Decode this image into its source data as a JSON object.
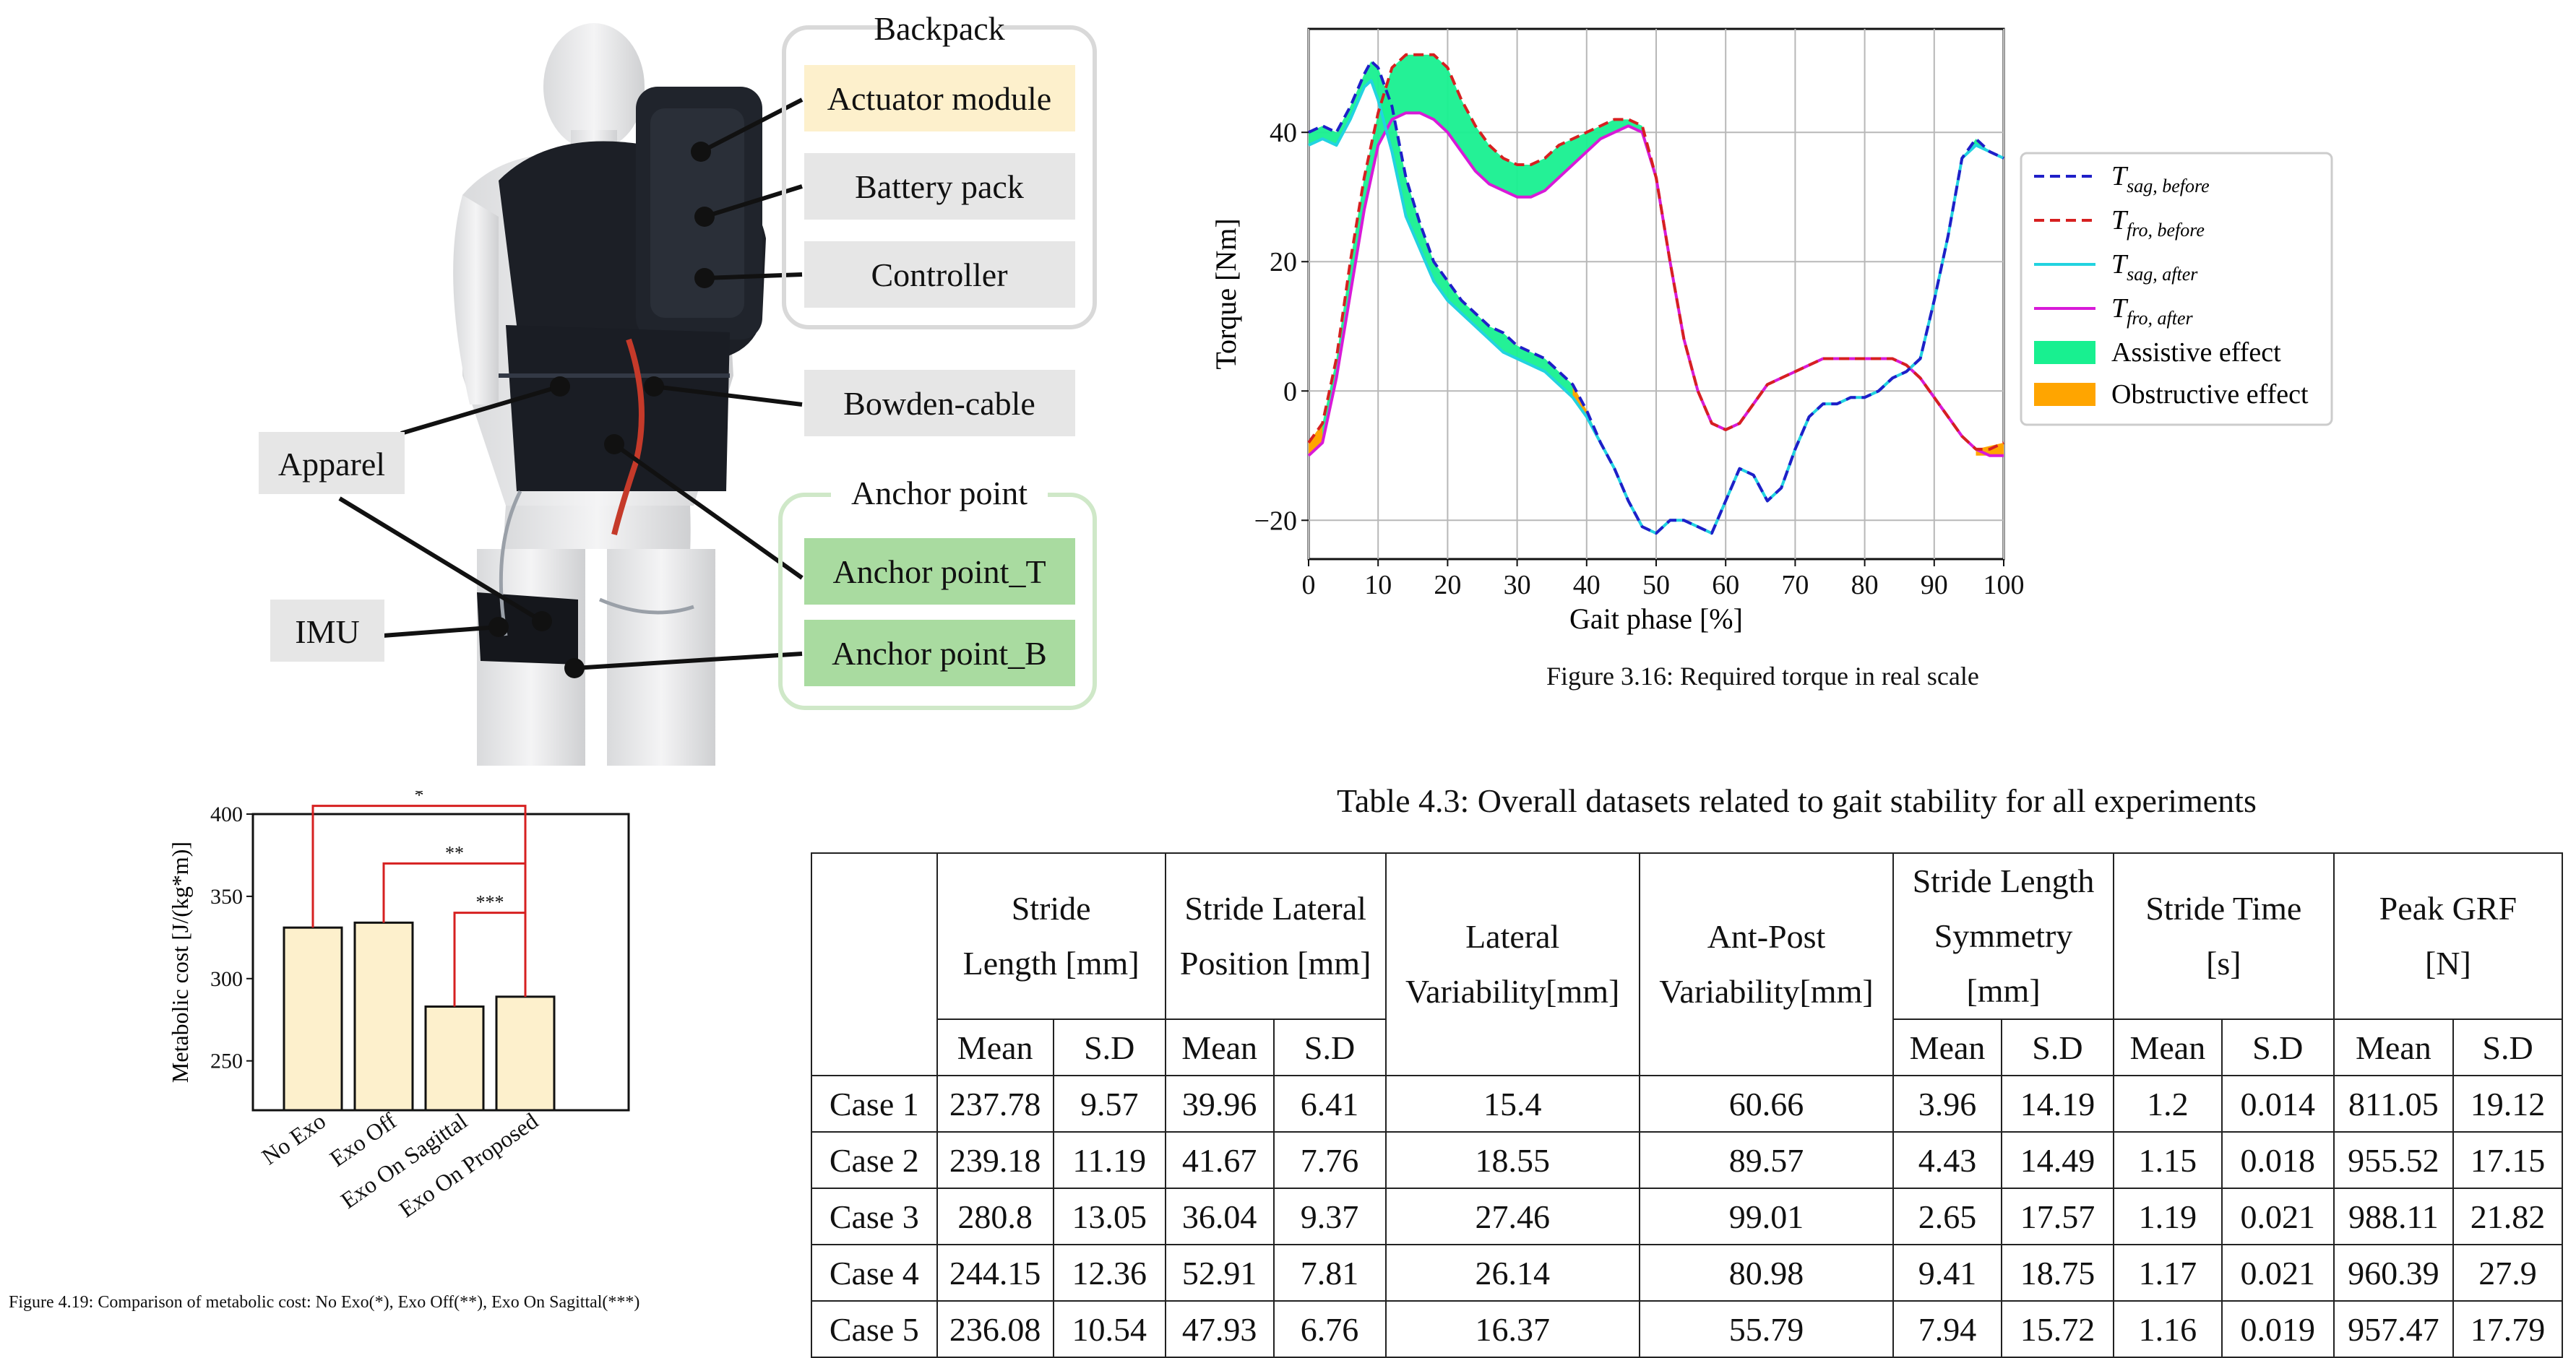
{
  "exo_figure": {
    "groups": [
      {
        "title": "Backpack",
        "items": [
          "Actuator module",
          "Battery pack",
          "Controller"
        ]
      },
      {
        "title": "Anchor point",
        "items": [
          "Anchor point_T",
          "Anchor point_B"
        ]
      }
    ],
    "standalone_labels": [
      "Bowden-cable",
      "Apparel",
      "IMU"
    ],
    "colors": {
      "actuator": "#fdf0cc",
      "gray": "#e6e6e6",
      "anchor": "#a9dba0",
      "backpack_frame": "#d9d9d9",
      "anchor_frame": "#cfe8c8"
    }
  },
  "torque_figure": {
    "caption": "Figure  3.16: Required torque in real scale",
    "chart_data": {
      "type": "line",
      "xlabel": "Gait phase [%]",
      "ylabel": "Torque [Nm]",
      "xlim": [
        0,
        100
      ],
      "ylim": [
        -26,
        56
      ],
      "xticks": [
        0,
        10,
        20,
        30,
        40,
        50,
        60,
        70,
        80,
        90,
        100
      ],
      "yticks": [
        -20,
        0,
        20,
        40
      ],
      "grid": true,
      "legend_position": "right",
      "series": [
        {
          "name": "T_sag,before",
          "style": "dashed",
          "color": "#1f1fc8",
          "x": [
            0,
            2,
            4,
            6,
            8,
            9,
            10,
            12,
            14,
            16,
            18,
            20,
            22,
            24,
            26,
            28,
            30,
            32,
            34,
            36,
            38,
            40,
            42,
            44,
            46,
            48,
            50,
            52,
            54,
            56,
            58,
            60,
            62,
            64,
            66,
            68,
            70,
            72,
            74,
            76,
            78,
            80,
            82,
            84,
            86,
            88,
            90,
            92,
            94,
            96,
            98,
            100
          ],
          "y": [
            40,
            41,
            40,
            44,
            49,
            51,
            50,
            44,
            33,
            26,
            20,
            17,
            14,
            12,
            10,
            9,
            7,
            6,
            5,
            3,
            1,
            -3,
            -8,
            -12,
            -17,
            -21,
            -22,
            -20,
            -20,
            -21,
            -22,
            -17,
            -12,
            -13,
            -17,
            -15,
            -9,
            -4,
            -2,
            -2,
            -1,
            -1,
            0,
            2,
            3,
            5,
            14,
            24,
            36,
            39,
            37,
            36
          ]
        },
        {
          "name": "T_fro,before",
          "style": "dashed",
          "color": "#d62020",
          "x": [
            0,
            2,
            4,
            6,
            8,
            10,
            12,
            14,
            16,
            18,
            20,
            22,
            24,
            26,
            28,
            30,
            32,
            34,
            36,
            38,
            40,
            42,
            44,
            46,
            48,
            50,
            52,
            54,
            56,
            58,
            60,
            62,
            64,
            66,
            68,
            70,
            72,
            74,
            76,
            78,
            80,
            82,
            84,
            86,
            88,
            90,
            92,
            94,
            96,
            98,
            100
          ],
          "y": [
            -8,
            -5,
            5,
            20,
            33,
            43,
            50,
            52,
            52,
            52,
            50,
            45,
            41,
            38,
            36,
            35,
            35,
            36,
            38,
            39,
            40,
            41,
            42,
            42,
            41,
            33,
            20,
            8,
            0,
            -5,
            -6,
            -5,
            -2,
            1,
            2,
            3,
            4,
            5,
            5,
            5,
            5,
            5,
            5,
            4,
            2,
            -1,
            -4,
            -7,
            -9,
            -9,
            -8
          ]
        },
        {
          "name": "T_sag,after",
          "style": "solid",
          "color": "#22d3e0",
          "x": [
            0,
            2,
            4,
            6,
            8,
            9,
            10,
            12,
            14,
            16,
            18,
            20,
            22,
            24,
            26,
            28,
            30,
            32,
            34,
            36,
            38,
            40,
            42,
            44,
            46,
            48,
            50,
            52,
            54,
            56,
            58,
            60,
            62,
            64,
            66,
            68,
            70,
            72,
            74,
            76,
            78,
            80,
            82,
            84,
            86,
            88,
            90,
            92,
            94,
            96,
            98,
            100
          ],
          "y": [
            38,
            39,
            38,
            42,
            47,
            48,
            45,
            37,
            27,
            22,
            17,
            14,
            12,
            10,
            8,
            6,
            5,
            4,
            3,
            1,
            -1,
            -4,
            -8,
            -12,
            -17,
            -21,
            -22,
            -20,
            -20,
            -21,
            -22,
            -17,
            -12,
            -13,
            -17,
            -15,
            -9,
            -4,
            -2,
            -2,
            -1,
            -1,
            0,
            2,
            3,
            5,
            14,
            24,
            36,
            38,
            37,
            36
          ]
        },
        {
          "name": "T_fro,after",
          "style": "solid",
          "color": "#d81ad8",
          "x": [
            0,
            2,
            4,
            6,
            8,
            10,
            12,
            14,
            16,
            18,
            20,
            22,
            24,
            26,
            28,
            30,
            32,
            34,
            36,
            38,
            40,
            42,
            44,
            46,
            48,
            50,
            52,
            54,
            56,
            58,
            60,
            62,
            64,
            66,
            68,
            70,
            72,
            74,
            76,
            78,
            80,
            82,
            84,
            86,
            88,
            90,
            92,
            94,
            96,
            98,
            100
          ],
          "y": [
            -10,
            -8,
            2,
            15,
            28,
            38,
            42,
            43,
            43,
            42,
            40,
            37,
            34,
            32,
            31,
            30,
            30,
            31,
            33,
            35,
            37,
            39,
            40,
            41,
            40,
            33,
            20,
            8,
            0,
            -5,
            -6,
            -5,
            -2,
            1,
            2,
            3,
            4,
            5,
            5,
            5,
            5,
            5,
            5,
            4,
            2,
            -1,
            -4,
            -7,
            -9,
            -10,
            -10
          ]
        },
        {
          "name": "Assistive effect",
          "style": "fill",
          "color": "#18f090"
        },
        {
          "name": "Obstructive effect",
          "style": "fill",
          "color": "#ffa500"
        }
      ]
    }
  },
  "metabolic_figure": {
    "caption": "Figure  4.19: Comparison of metabolic cost: No Exo(*), Exo Off(**), Exo On Sagittal(***)",
    "chart_data": {
      "type": "bar",
      "categories": [
        "No Exo",
        "Exo Off",
        "Exo On Sagittal",
        "Exo On Proposed"
      ],
      "values": [
        331,
        334,
        283,
        289
      ],
      "ylabel": "Metabolic cost [J/(kg*m)]",
      "ylim": [
        220,
        400
      ],
      "yticks": [
        250,
        300,
        350,
        400
      ],
      "bar_color": "#fdf0cc",
      "significance": [
        "*",
        "**",
        "***"
      ],
      "significance_color": "#d62020"
    }
  },
  "gait_table": {
    "caption": "Table  4.3: Overall datasets related to gait stability for all experiments",
    "headers": [
      {
        "line1": "Stride",
        "line2": "Length [mm]"
      },
      {
        "line1": "Stride Lateral",
        "line2": "Position [mm]"
      },
      {
        "line1": "Lateral",
        "line2": "Variability[mm]"
      },
      {
        "line1": "Ant-Post",
        "line2": "Variability[mm]"
      },
      {
        "line1": "Stride Length",
        "line2": "Symmetry [mm]"
      },
      {
        "line1": "Stride Time",
        "line2": "[s]"
      },
      {
        "line1": "Peak GRF",
        "line2": "[N]"
      }
    ],
    "sub": {
      "mean": "Mean",
      "sd": "S.D"
    },
    "rows": [
      {
        "label": "Case 1",
        "v": [
          "237.78",
          "9.57",
          "39.96",
          "6.41",
          "15.4",
          "60.66",
          "3.96",
          "14.19",
          "1.2",
          "0.014",
          "811.05",
          "19.12"
        ]
      },
      {
        "label": "Case 2",
        "v": [
          "239.18",
          "11.19",
          "41.67",
          "7.76",
          "18.55",
          "89.57",
          "4.43",
          "14.49",
          "1.15",
          "0.018",
          "955.52",
          "17.15"
        ]
      },
      {
        "label": "Case 3",
        "v": [
          "280.8",
          "13.05",
          "36.04",
          "9.37",
          "27.46",
          "99.01",
          "2.65",
          "17.57",
          "1.19",
          "0.021",
          "988.11",
          "21.82"
        ]
      },
      {
        "label": "Case 4",
        "v": [
          "244.15",
          "12.36",
          "52.91",
          "7.81",
          "26.14",
          "80.98",
          "9.41",
          "18.75",
          "1.17",
          "0.021",
          "960.39",
          "27.9"
        ]
      },
      {
        "label": "Case 5",
        "v": [
          "236.08",
          "10.54",
          "47.93",
          "6.76",
          "16.37",
          "55.79",
          "7.94",
          "15.72",
          "1.16",
          "0.019",
          "957.47",
          "17.79"
        ]
      }
    ]
  }
}
